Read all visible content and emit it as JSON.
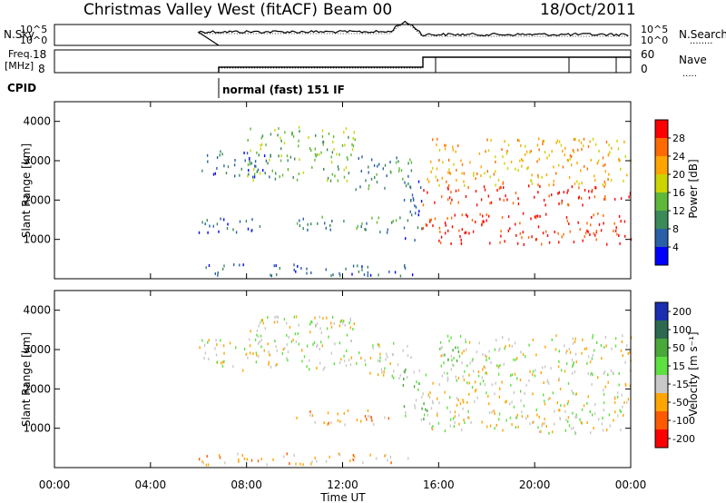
{
  "header": {
    "station": "Christmas Valley West (fitACF)",
    "beam": "Beam 00",
    "date": "18/Oct/2011"
  },
  "sky_panel": {
    "left_label": "N.Sky",
    "right_label": "N.Search",
    "yticks_left": [
      "10^5",
      "10^0"
    ],
    "yticks_right": [
      "10^5",
      "10^0"
    ]
  },
  "freq_panel": {
    "left_label_1": "Freq.",
    "left_label_2": "[MHz]",
    "right_label": "Nave",
    "yticks_left": [
      "18",
      "8"
    ],
    "yticks_right": [
      "60",
      "0"
    ]
  },
  "cpid": {
    "label": "CPID",
    "text": "normal (fast) 151 IF"
  },
  "colors": {
    "power_scale": [
      "#0000ff",
      "#2a60a8",
      "#3a8a5a",
      "#5fb83a",
      "#ccd400",
      "#ffa500",
      "#ff6a00",
      "#ff0000"
    ],
    "velocity_scale": [
      "#1a2fb0",
      "#2c6a50",
      "#48a838",
      "#5de040",
      "#c8c8c8",
      "#ffa500",
      "#ff5a00",
      "#ff0000"
    ]
  },
  "chart_data": [
    {
      "type": "heatmap",
      "name": "power",
      "ylabel": "Slant Range [km]",
      "yticks": [
        "1000",
        "2000",
        "3000",
        "4000"
      ],
      "ylim": [
        0,
        4500
      ],
      "xlim": [
        "00:00",
        "24:00"
      ],
      "colorbar": {
        "label": "Power [dB]",
        "ticks": [
          "4",
          "8",
          "12",
          "16",
          "20",
          "24",
          "28"
        ],
        "range": [
          0,
          30
        ]
      },
      "bands": [
        {
          "t0": 6.0,
          "t1": 9.0,
          "r0": 2600,
          "r1": 3300,
          "level": 1
        },
        {
          "t0": 8.0,
          "t1": 12.5,
          "r0": 2500,
          "r1": 3900,
          "level": 3
        },
        {
          "t0": 12.5,
          "t1": 15.0,
          "r0": 2300,
          "r1": 3200,
          "level": 2
        },
        {
          "t0": 6.0,
          "t1": 9.0,
          "r0": 1200,
          "r1": 1600,
          "level": 1
        },
        {
          "t0": 10.0,
          "t1": 14.5,
          "r0": 1200,
          "r1": 1600,
          "level": 2
        },
        {
          "t0": 14.5,
          "t1": 15.3,
          "r0": 1000,
          "r1": 2600,
          "level": 1
        },
        {
          "t0": 15.3,
          "t1": 24.0,
          "r0": 900,
          "r1": 1700,
          "level": 7
        },
        {
          "t0": 15.3,
          "t1": 24.0,
          "r0": 1900,
          "r1": 2400,
          "level": 7
        },
        {
          "t0": 15.5,
          "t1": 24.0,
          "r0": 2400,
          "r1": 3600,
          "level": 5
        },
        {
          "t0": 6.0,
          "t1": 15.0,
          "r0": 100,
          "r1": 400,
          "level": 1
        }
      ]
    },
    {
      "type": "heatmap",
      "name": "velocity",
      "ylabel": "Slant Range [km]",
      "yticks": [
        "1000",
        "2000",
        "3000",
        "4000"
      ],
      "ylim": [
        0,
        4500
      ],
      "xlabel": "Time UT",
      "xticks": [
        "00:00",
        "04:00",
        "08:00",
        "12:00",
        "16:00",
        "20:00",
        "00:00"
      ],
      "xlim": [
        "00:00",
        "24:00"
      ],
      "colorbar": {
        "label": "Velocity [m s⁻¹]",
        "ticks": [
          "200",
          "100",
          "50",
          "15",
          "-15",
          "-50",
          "-100",
          "-200"
        ],
        "range": [
          -250,
          250
        ]
      },
      "bands": [
        {
          "t0": 6.0,
          "t1": 9.0,
          "r0": 2500,
          "r1": 3300,
          "level": 4
        },
        {
          "t0": 8.0,
          "t1": 12.5,
          "r0": 2500,
          "r1": 3900,
          "level": 4
        },
        {
          "t0": 12.5,
          "t1": 15.0,
          "r0": 2300,
          "r1": 3200,
          "level": 4
        },
        {
          "t0": 10.0,
          "t1": 14.0,
          "r0": 1100,
          "r1": 1500,
          "level": 5
        },
        {
          "t0": 14.5,
          "t1": 15.5,
          "r0": 1200,
          "r1": 2600,
          "level": 3
        },
        {
          "t0": 15.3,
          "t1": 24.0,
          "r0": 900,
          "r1": 2400,
          "level": 4
        },
        {
          "t0": 16.0,
          "t1": 17.0,
          "r0": 2600,
          "r1": 3300,
          "level": 3
        },
        {
          "t0": 16.0,
          "t1": 24.0,
          "r0": 2400,
          "r1": 3400,
          "level": 4
        },
        {
          "t0": 6.0,
          "t1": 15.0,
          "r0": 100,
          "r1": 400,
          "level": 5
        }
      ]
    }
  ]
}
